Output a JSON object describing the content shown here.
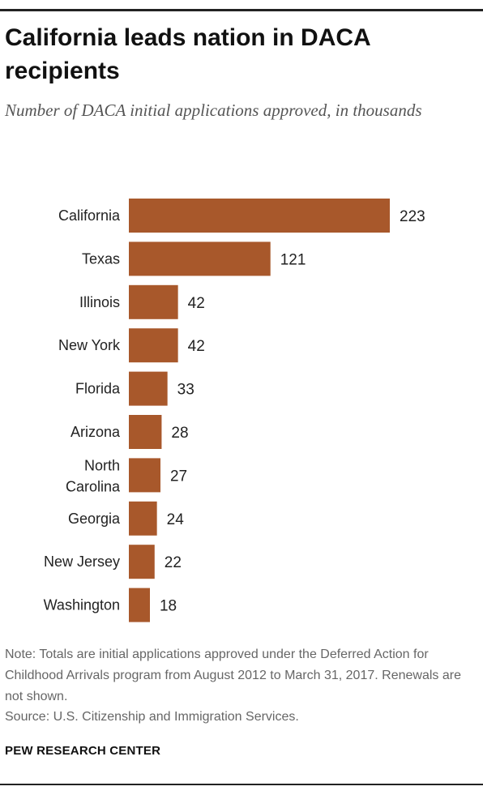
{
  "header": {
    "title": "California leads nation in DACA recipients",
    "subtitle": "Number of DACA initial applications approved, in thousands"
  },
  "chart_data": {
    "type": "bar",
    "orientation": "horizontal",
    "categories": [
      "California",
      "Texas",
      "Illinois",
      "New York",
      "Florida",
      "Arizona",
      "North Carolina",
      "Georgia",
      "New Jersey",
      "Washington"
    ],
    "values": [
      223,
      121,
      42,
      42,
      33,
      28,
      27,
      24,
      22,
      18
    ],
    "title": "California leads nation in DACA recipients",
    "subtitle": "Number of DACA initial applications approved, in thousands",
    "xlabel": "",
    "ylabel": "",
    "grid": false,
    "bar_color": "#a8582b"
  },
  "footer": {
    "note": "Note: Totals are initial applications approved under the Deferred Action for Childhood Arrivals program from August 2012 to March 31, 2017. Renewals are not shown.",
    "source": "Source: U.S. Citizenship and Immigration Services.",
    "brand": "PEW RESEARCH CENTER"
  }
}
